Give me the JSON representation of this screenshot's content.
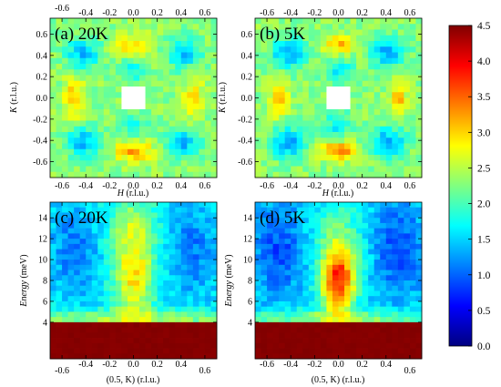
{
  "chart_data": [
    {
      "type": "heatmap",
      "panel_label": "(a) 20K",
      "xlabel": "H (r.l.u.)",
      "ylabel": "K (r.l.u.)",
      "x_ticks": [
        "-0.6",
        "-0.4",
        "-0.2",
        "0.0",
        "0.2",
        "0.4",
        "0.6"
      ],
      "y_ticks": [
        "-0.6",
        "-0.4",
        "-0.2",
        "0.0",
        "0.2",
        "0.4",
        "0.6"
      ],
      "xlim": [
        -0.7,
        0.7
      ],
      "ylim": [
        -0.75,
        0.75
      ],
      "background": 2.3,
      "hole": {
        "value": null,
        "x": [
          -0.1,
          0.1
        ],
        "y": [
          -0.1,
          0.1
        ]
      },
      "features": [
        {
          "x": 0.0,
          "y": -0.5,
          "sx": 0.12,
          "sy": 0.07,
          "amp": 0.9
        },
        {
          "x": 0.0,
          "y": 0.5,
          "sx": 0.12,
          "sy": 0.07,
          "amp": 0.7
        },
        {
          "x": -0.5,
          "y": 0.0,
          "sx": 0.06,
          "sy": 0.14,
          "amp": 0.7
        },
        {
          "x": 0.5,
          "y": 0.0,
          "sx": 0.06,
          "sy": 0.14,
          "amp": 0.7
        },
        {
          "x": -0.42,
          "y": 0.42,
          "sx": 0.1,
          "sy": 0.1,
          "amp": -0.9
        },
        {
          "x": 0.42,
          "y": 0.42,
          "sx": 0.1,
          "sy": 0.1,
          "amp": -0.9
        },
        {
          "x": -0.42,
          "y": -0.42,
          "sx": 0.1,
          "sy": 0.1,
          "amp": -0.9
        },
        {
          "x": 0.42,
          "y": -0.42,
          "sx": 0.1,
          "sy": 0.1,
          "amp": -0.9
        },
        {
          "x": 0.0,
          "y": 0.25,
          "sx": 0.08,
          "sy": 0.08,
          "amp": -0.6
        },
        {
          "x": 0.0,
          "y": -0.25,
          "sx": 0.08,
          "sy": 0.08,
          "amp": -0.6
        }
      ]
    },
    {
      "type": "heatmap",
      "panel_label": "(b) 5K",
      "xlabel": "H (r.l.u.)",
      "ylabel": "K (r.l.u.)",
      "x_ticks": [
        "-0.6",
        "-0.4",
        "-0.2",
        "0.0",
        "0.2",
        "0.4",
        "0.6"
      ],
      "y_ticks": [
        "-0.6",
        "-0.4",
        "-0.2",
        "0.0",
        "0.2",
        "0.4",
        "0.6"
      ],
      "xlim": [
        -0.7,
        0.7
      ],
      "ylim": [
        -0.75,
        0.75
      ],
      "background": 2.3,
      "hole": {
        "value": null,
        "x": [
          -0.1,
          0.1
        ],
        "y": [
          -0.1,
          0.1
        ]
      },
      "features": [
        {
          "x": 0.0,
          "y": -0.5,
          "sx": 0.1,
          "sy": 0.06,
          "amp": 1.1
        },
        {
          "x": 0.0,
          "y": 0.5,
          "sx": 0.1,
          "sy": 0.06,
          "amp": 0.8
        },
        {
          "x": -0.5,
          "y": 0.0,
          "sx": 0.05,
          "sy": 0.12,
          "amp": 0.9
        },
        {
          "x": 0.5,
          "y": 0.0,
          "sx": 0.05,
          "sy": 0.12,
          "amp": 0.8
        },
        {
          "x": -0.42,
          "y": 0.42,
          "sx": 0.1,
          "sy": 0.1,
          "amp": -1.0
        },
        {
          "x": 0.42,
          "y": 0.42,
          "sx": 0.1,
          "sy": 0.1,
          "amp": -1.0
        },
        {
          "x": -0.42,
          "y": -0.42,
          "sx": 0.1,
          "sy": 0.1,
          "amp": -1.0
        },
        {
          "x": 0.42,
          "y": -0.42,
          "sx": 0.1,
          "sy": 0.1,
          "amp": -1.0
        },
        {
          "x": 0.0,
          "y": 0.25,
          "sx": 0.08,
          "sy": 0.08,
          "amp": -0.7
        },
        {
          "x": 0.0,
          "y": -0.25,
          "sx": 0.08,
          "sy": 0.08,
          "amp": -0.7
        }
      ]
    },
    {
      "type": "heatmap",
      "panel_label": "(c) 20K",
      "xlabel": "(0.5, K) (r.l.u.)",
      "ylabel": "Energy (meV)",
      "x_ticks": [
        "-0.6",
        "-0.4",
        "-0.2",
        "0.0",
        "0.2",
        "0.4",
        "0.6"
      ],
      "y_ticks": [
        "4",
        "6",
        "8",
        "10",
        "12",
        "14"
      ],
      "xlim": [
        -0.7,
        0.7
      ],
      "ylim": [
        0.5,
        15.5
      ],
      "background": 1.6,
      "elastic_cutoff_meV": 3.8,
      "elastic_value": 4.5,
      "features": [
        {
          "x": 0.0,
          "y": 8.5,
          "sx": 0.12,
          "sy": 3.0,
          "amp": 1.3
        },
        {
          "x": 0.0,
          "y": 13.5,
          "sx": 0.15,
          "sy": 2.0,
          "amp": 0.6
        },
        {
          "x": -0.5,
          "y": 11.0,
          "sx": 0.14,
          "sy": 3.0,
          "amp": -0.5
        },
        {
          "x": 0.5,
          "y": 11.0,
          "sx": 0.14,
          "sy": 3.0,
          "amp": -0.5
        },
        {
          "x": 0.0,
          "y": 4.3,
          "sx": 1.0,
          "sy": 0.6,
          "amp": 0.8
        }
      ]
    },
    {
      "type": "heatmap",
      "panel_label": "(d) 5K",
      "xlabel": "(0.5, K) (r.l.u.)",
      "ylabel": "Energy (meV)",
      "x_ticks": [
        "-0.6",
        "-0.4",
        "-0.2",
        "0.0",
        "0.2",
        "0.4",
        "0.6"
      ],
      "y_ticks": [
        "4",
        "6",
        "8",
        "10",
        "12",
        "14"
      ],
      "xlim": [
        -0.7,
        0.7
      ],
      "ylim": [
        0.5,
        15.5
      ],
      "background": 1.5,
      "elastic_cutoff_meV": 3.8,
      "elastic_value": 4.5,
      "features": [
        {
          "x": 0.0,
          "y": 7.8,
          "sx": 0.1,
          "sy": 2.2,
          "amp": 2.0
        },
        {
          "x": 0.0,
          "y": 11.5,
          "sx": 0.14,
          "sy": 3.0,
          "amp": 0.7
        },
        {
          "x": -0.5,
          "y": 11.0,
          "sx": 0.14,
          "sy": 3.0,
          "amp": -0.6
        },
        {
          "x": 0.5,
          "y": 11.0,
          "sx": 0.14,
          "sy": 3.0,
          "amp": -0.6
        },
        {
          "x": 0.0,
          "y": 4.3,
          "sx": 1.0,
          "sy": 0.6,
          "amp": 0.8
        }
      ]
    }
  ],
  "colorbar": {
    "min": 0.0,
    "max": 4.5,
    "ticks": [
      "0.0",
      "0.5",
      "1.0",
      "1.5",
      "2.0",
      "2.5",
      "3.0",
      "3.5",
      "4.0",
      "4.5"
    ],
    "colormap": "jet",
    "stops": [
      "#000080",
      "#0000ff",
      "#0080ff",
      "#00ffff",
      "#80ff80",
      "#ffff00",
      "#ff8000",
      "#ff0000",
      "#800000"
    ]
  }
}
